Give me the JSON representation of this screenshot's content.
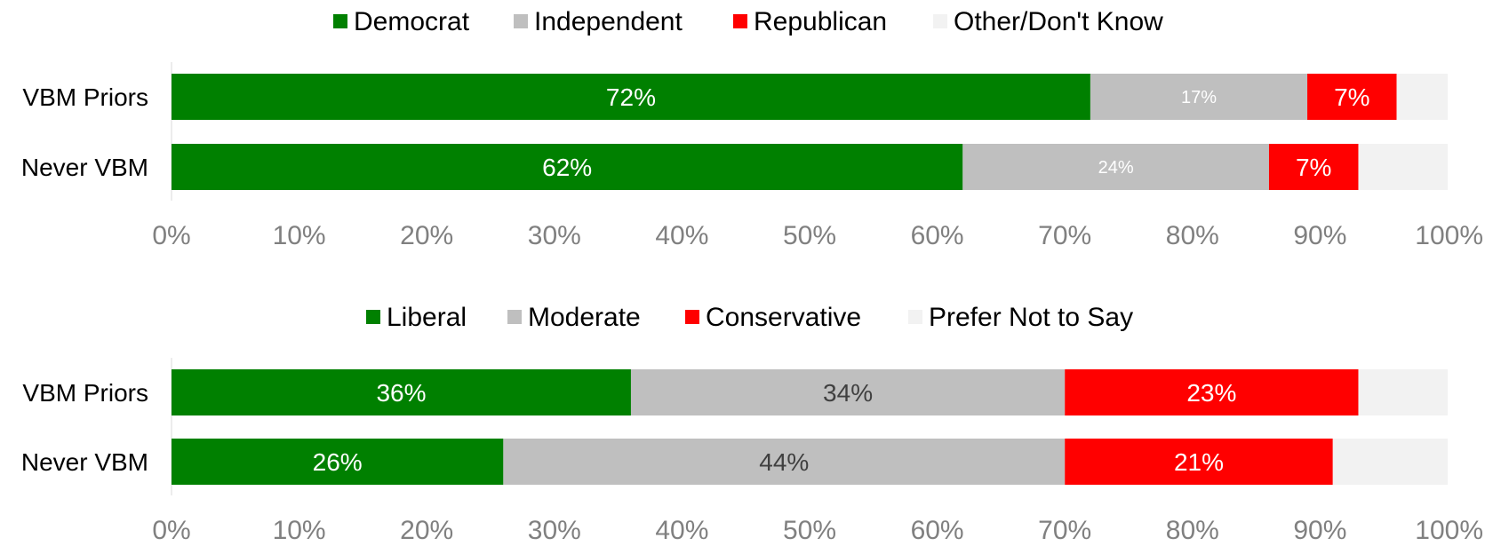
{
  "chart_data": [
    {
      "type": "bar",
      "orientation": "horizontal",
      "stacked": true,
      "categories": [
        "VBM Priors",
        "Never VBM"
      ],
      "series": [
        {
          "name": "Democrat",
          "values": [
            72,
            62
          ],
          "labels": [
            "72%",
            "62%"
          ],
          "color": "#008000",
          "label_color": "#ffffff"
        },
        {
          "name": "Independent",
          "values": [
            17,
            24
          ],
          "labels": [
            "17%",
            "24%"
          ],
          "color": "#bfbfbf",
          "label_color": "#ffffff"
        },
        {
          "name": "Republican",
          "values": [
            7,
            7
          ],
          "labels": [
            "7%",
            "7%"
          ],
          "color": "#ff0000",
          "label_color": "#ffffff"
        },
        {
          "name": "Other/Don't Know",
          "values": [
            4,
            7
          ],
          "labels": [
            "",
            ""
          ],
          "color": "#f2f2f2",
          "label_color": "#404040"
        }
      ],
      "xlim": [
        0,
        100
      ],
      "x_ticks": [
        "0%",
        "10%",
        "20%",
        "30%",
        "40%",
        "50%",
        "60%",
        "70%",
        "80%",
        "90%",
        "100%"
      ],
      "legend_position": "top",
      "grid": false
    },
    {
      "type": "bar",
      "orientation": "horizontal",
      "stacked": true,
      "categories": [
        "VBM Priors",
        "Never VBM"
      ],
      "series": [
        {
          "name": "Liberal",
          "values": [
            36,
            26
          ],
          "labels": [
            "36%",
            "26%"
          ],
          "color": "#008000",
          "label_color": "#ffffff"
        },
        {
          "name": "Moderate",
          "values": [
            34,
            44
          ],
          "labels": [
            "34%",
            "44%"
          ],
          "color": "#bfbfbf",
          "label_color": "#404040"
        },
        {
          "name": "Conservative",
          "values": [
            23,
            21
          ],
          "labels": [
            "23%",
            "21%"
          ],
          "color": "#ff0000",
          "label_color": "#ffffff"
        },
        {
          "name": "Prefer Not to Say",
          "values": [
            7,
            9
          ],
          "labels": [
            "",
            ""
          ],
          "color": "#f2f2f2",
          "label_color": "#404040"
        }
      ],
      "xlim": [
        0,
        100
      ],
      "x_ticks": [
        "0%",
        "10%",
        "20%",
        "30%",
        "40%",
        "50%",
        "60%",
        "70%",
        "80%",
        "90%",
        "100%"
      ],
      "legend_position": "top",
      "grid": false
    }
  ],
  "colors": {
    "axis_text": "#808080",
    "category_text": "#000000",
    "legend_text": "#000000",
    "axis_line": "#d9d9d9"
  }
}
